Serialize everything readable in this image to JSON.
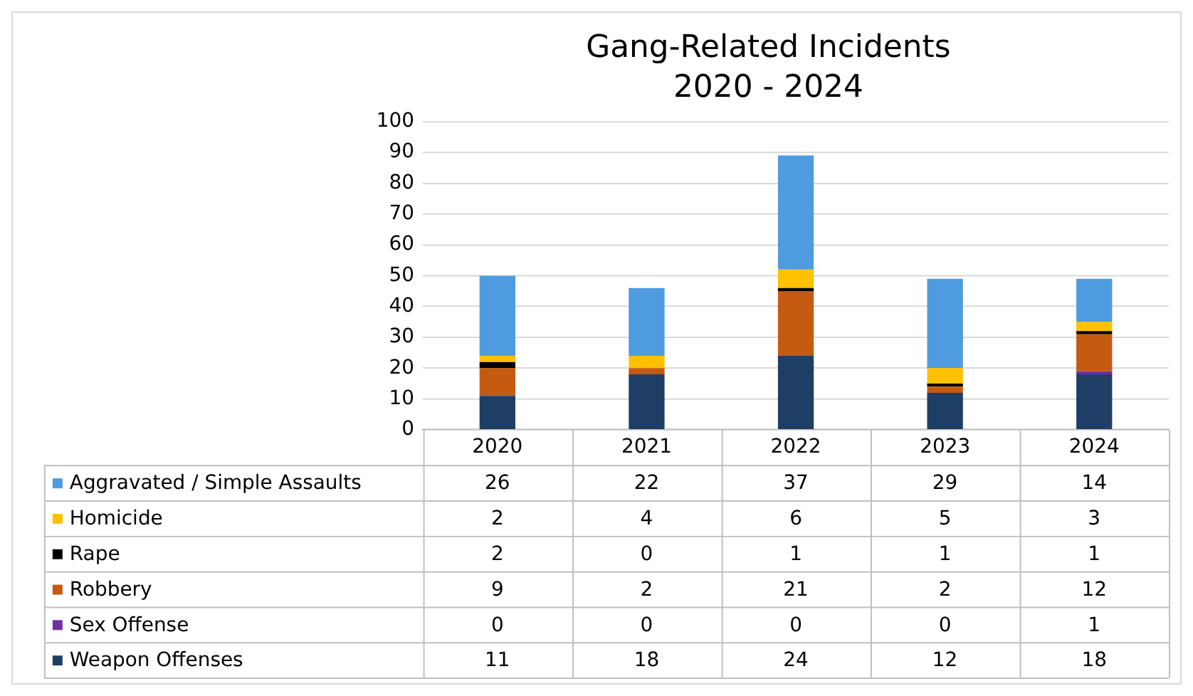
{
  "chart_data": {
    "type": "bar",
    "title": "Gang-Related Incidents",
    "subtitle": "2020 - 2024",
    "categories": [
      "2020",
      "2021",
      "2022",
      "2023",
      "2024"
    ],
    "stacked": true,
    "ylim": [
      0,
      100
    ],
    "yticks": [
      0,
      10,
      20,
      30,
      40,
      50,
      60,
      70,
      80,
      90,
      100
    ],
    "grid": "y",
    "legend": "bottom",
    "data_labels": true,
    "series": [
      {
        "name": "Weapon Offenses",
        "color": "#1f3e66",
        "values": [
          11,
          18,
          24,
          12,
          18
        ]
      },
      {
        "name": "Sex Offense",
        "color": "#7030a0",
        "values": [
          0,
          0,
          0,
          0,
          1
        ]
      },
      {
        "name": "Robbery",
        "color": "#c55a11",
        "values": [
          9,
          2,
          21,
          2,
          12
        ]
      },
      {
        "name": "Rape",
        "color": "#000000",
        "values": [
          2,
          0,
          1,
          1,
          1
        ]
      },
      {
        "name": "Homicide",
        "color": "#ffc000",
        "values": [
          2,
          4,
          6,
          5,
          3
        ]
      },
      {
        "name": "Aggravated / Simple Assaults",
        "color": "#4e9be0",
        "values": [
          26,
          22,
          37,
          29,
          14
        ]
      }
    ]
  }
}
